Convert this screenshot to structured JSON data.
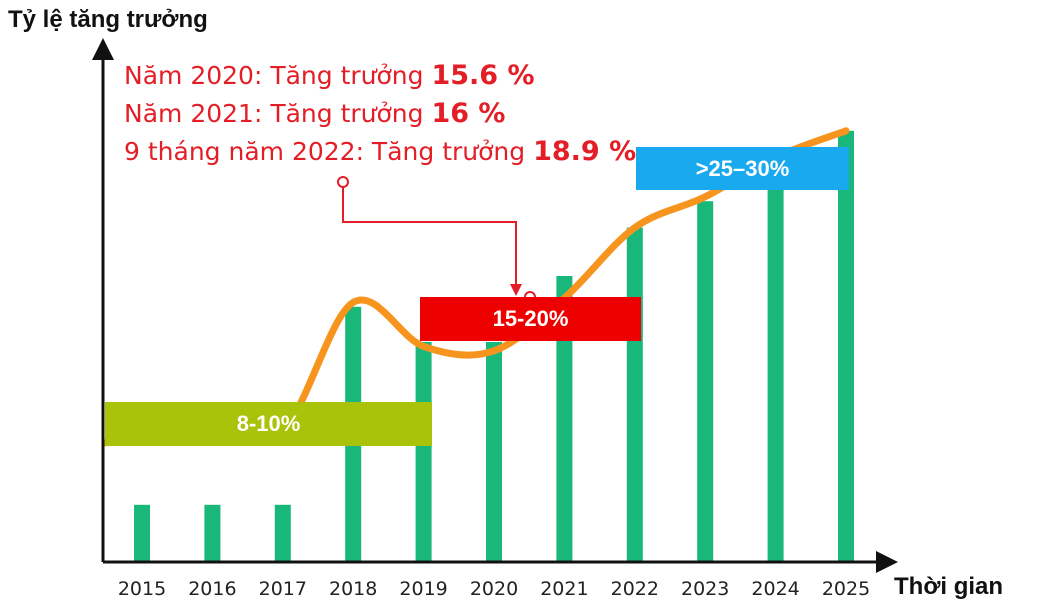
{
  "chart_data": {
    "type": "bar",
    "y_axis_label": "Tỷ lệ tăng trưởng",
    "x_axis_label": "Thời gian",
    "categories": [
      "2015",
      "2016",
      "2017",
      "2018",
      "2019",
      "2020",
      "2021",
      "2022",
      "2023",
      "2024",
      "2025"
    ],
    "bar_heights_relative": [
      0.13,
      0.13,
      0.13,
      0.58,
      0.5,
      0.5,
      0.65,
      0.76,
      0.82,
      0.9,
      0.98
    ],
    "trend_curve_relative": [
      0.28,
      0.32,
      0.3,
      0.59,
      0.49,
      0.48,
      0.6,
      0.76,
      0.83,
      0.92,
      0.98
    ],
    "bar_color": "#19b77a",
    "curve_color": "#f7941d",
    "bands": [
      {
        "label": "8-10%",
        "color": "#a9c20a"
      },
      {
        "label": "15-20%",
        "color": "#ee0000"
      },
      {
        "label": ">25–30%",
        "color": "#19a9ee"
      }
    ],
    "annotations": [
      {
        "text": "Năm 2020: Tăng trưởng ",
        "value": "15.6 %"
      },
      {
        "text": "Năm 2021: Tăng trưởng ",
        "value": "16 %"
      },
      {
        "text": "9 tháng năm 2022: Tăng trưởng ",
        "value": "18.9 %"
      }
    ],
    "annotation_color": "#e41e26"
  }
}
